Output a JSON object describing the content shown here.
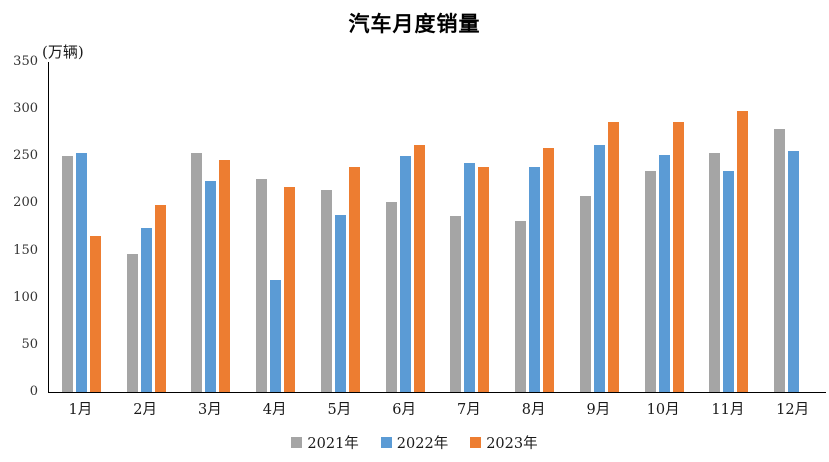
{
  "title": "汽车月度销量",
  "unit_label": "(万辆)",
  "colors": {
    "series_2021": "#A5A5A5",
    "series_2022": "#5B9BD5",
    "series_2023": "#ED7D31",
    "axis_line": "#000000",
    "text": "#1a1a1a",
    "background": "#ffffff"
  },
  "chart_data": {
    "type": "bar",
    "title": "汽车月度销量",
    "ylabel": "(万辆)",
    "xlabel": "",
    "categories": [
      "1月",
      "2月",
      "3月",
      "4月",
      "5月",
      "6月",
      "7月",
      "8月",
      "9月",
      "10月",
      "11月",
      "12月"
    ],
    "series": [
      {
        "name": "2021年",
        "color": "#A5A5A5",
        "values": [
          250,
          146,
          253,
          226,
          214,
          202,
          187,
          181,
          208,
          234,
          253,
          279
        ]
      },
      {
        "name": "2022年",
        "color": "#5B9BD5",
        "values": [
          253,
          174,
          224,
          119,
          188,
          250,
          243,
          239,
          262,
          251,
          234,
          256
        ]
      },
      {
        "name": "2023年",
        "color": "#ED7D31",
        "values": [
          165,
          198,
          246,
          217,
          239,
          262,
          239,
          259,
          286,
          286,
          298,
          null
        ]
      }
    ],
    "ylim": [
      0,
      350
    ],
    "yticks": [
      0,
      50,
      100,
      150,
      200,
      250,
      300,
      350
    ],
    "grid": false,
    "legend_position": "bottom"
  }
}
